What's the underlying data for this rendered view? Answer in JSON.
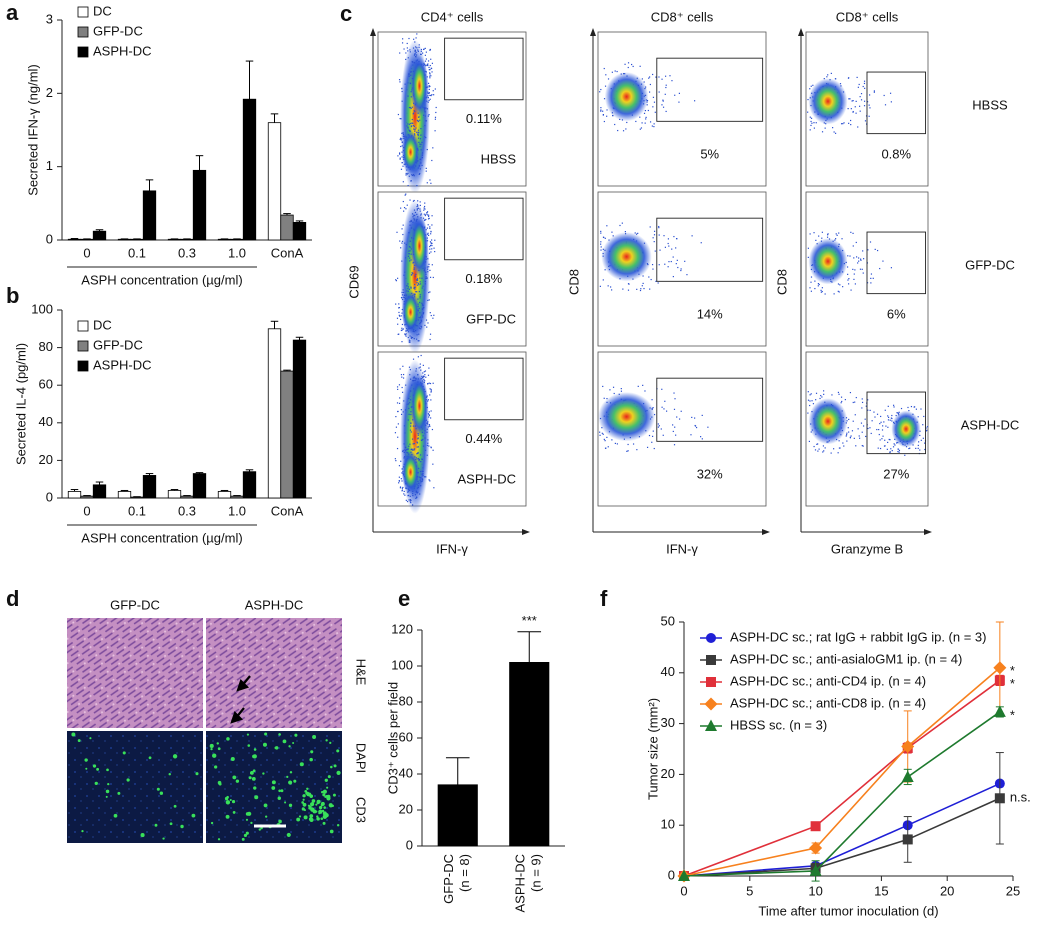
{
  "chart_data": [
    {
      "type": "bar",
      "panel": "a",
      "y_label": "Secreted IFN-γ (ng/ml)",
      "x_label": "ASPH concentration (µg/ml)",
      "categories": [
        "0",
        "0.1",
        "0.3",
        "1.0",
        "ConA"
      ],
      "ylim": [
        0,
        3
      ],
      "yticks": [
        0,
        1,
        2,
        3
      ],
      "series": [
        {
          "name": "DC",
          "color": "#ffffff",
          "values": [
            0.01,
            0.01,
            0.01,
            0.01,
            1.6
          ],
          "errors": [
            0.01,
            0.005,
            0.005,
            0.005,
            0.12
          ]
        },
        {
          "name": "GFP-DC",
          "color": "#808080",
          "values": [
            0.01,
            0.01,
            0.01,
            0.01,
            0.34
          ],
          "errors": [
            0.005,
            0.005,
            0.005,
            0.005,
            0.02
          ]
        },
        {
          "name": "ASPH-DC",
          "color": "#000000",
          "values": [
            0.12,
            0.67,
            0.95,
            1.92,
            0.24
          ],
          "errors": [
            0.02,
            0.15,
            0.2,
            0.52,
            0.02
          ]
        }
      ]
    },
    {
      "type": "bar",
      "panel": "b",
      "y_label": "Secreted IL-4 (pg/ml)",
      "x_label": "ASPH concentration (µg/ml)",
      "categories": [
        "0",
        "0.1",
        "0.3",
        "1.0",
        "ConA"
      ],
      "ylim": [
        0,
        100
      ],
      "yticks": [
        0,
        20,
        40,
        60,
        80,
        100
      ],
      "series": [
        {
          "name": "DC",
          "color": "#ffffff",
          "values": [
            3.5,
            3.5,
            4,
            3.5,
            90
          ],
          "errors": [
            1,
            0.5,
            0.5,
            0.5,
            4
          ]
        },
        {
          "name": "GFP-DC",
          "color": "#808080",
          "values": [
            1,
            0.5,
            1,
            1,
            67.5
          ],
          "errors": [
            0.3,
            0.2,
            0.3,
            0.3,
            0.5
          ]
        },
        {
          "name": "ASPH-DC",
          "color": "#000000",
          "values": [
            7,
            12,
            13,
            14,
            84
          ],
          "errors": [
            1.5,
            1,
            0.5,
            1,
            1.5
          ]
        }
      ]
    },
    {
      "type": "bar",
      "panel": "e",
      "y_label": "CD3⁺ cells per field",
      "categories": [
        "GFP-DC",
        "ASPH-DC"
      ],
      "group_sizes": [
        "(n = 8)",
        "(n = 9)"
      ],
      "values": [
        34,
        102
      ],
      "errors": [
        15,
        17
      ],
      "color": "#000000",
      "significance": "***",
      "ylim": [
        0,
        120
      ],
      "yticks": [
        0,
        20,
        40,
        60,
        80,
        100,
        120
      ]
    },
    {
      "type": "line",
      "panel": "f",
      "x_label": "Time after tumor inoculation (d)",
      "y_label": "Tumor size (mm²)",
      "x": [
        0,
        10,
        17,
        24
      ],
      "xlim": [
        0,
        25
      ],
      "xticks": [
        0,
        5,
        10,
        15,
        20,
        25
      ],
      "ylim": [
        0,
        50
      ],
      "yticks": [
        0,
        10,
        20,
        30,
        40,
        50
      ],
      "series": [
        {
          "name": "ASPH-DC sc.; rat IgG + rabbit IgG ip. (n = 3)",
          "color": "#1f1fd6",
          "marker": "circle",
          "values": [
            0,
            2,
            10,
            18.2
          ],
          "errors": [
            0,
            0.5,
            0.5,
            0.5
          ]
        },
        {
          "name": "ASPH-DC sc.; anti-asialoGM1 ip. (n = 4)",
          "color": "#3a3a3a",
          "marker": "square",
          "values": [
            0,
            1.5,
            7.2,
            15.3
          ],
          "errors": [
            0,
            1,
            4.5,
            9
          ],
          "annotation": "n.s."
        },
        {
          "name": "ASPH-DC sc.; anti-CD4 ip. (n = 4)",
          "color": "#e0303a",
          "marker": "square",
          "values": [
            0,
            9.8,
            25.2,
            38.5
          ],
          "errors": [
            0,
            0.5,
            1,
            1
          ],
          "annotation": "*"
        },
        {
          "name": "ASPH-DC sc.; anti-CD8 ip. (n = 4)",
          "color": "#f7811e",
          "marker": "diamond",
          "values": [
            0,
            5.5,
            25.5,
            41
          ],
          "errors": [
            0,
            1,
            7,
            9
          ],
          "annotation": "*"
        },
        {
          "name": "HBSS sc. (n = 3)",
          "color": "#1e7a2e",
          "marker": "triangle",
          "values": [
            0,
            1,
            19.5,
            32.3
          ],
          "errors": [
            0,
            2,
            1.5,
            1
          ],
          "annotation": "*"
        }
      ]
    }
  ],
  "flow": {
    "panel": "c",
    "rows": [
      "HBSS",
      "GFP-DC",
      "ASPH-DC"
    ],
    "columns": [
      {
        "header": "CD4⁺ cells",
        "y_label": "CD69",
        "x_label": "IFN-γ",
        "gates": [
          "0.11%",
          "0.18%",
          "0.44%"
        ]
      },
      {
        "header": "CD8⁺ cells",
        "y_label": "CD8",
        "x_label": "IFN-γ",
        "gates": [
          "5%",
          "14%",
          "32%"
        ]
      },
      {
        "header": "CD8⁺ cells",
        "y_label": "CD8",
        "x_label": "Granzyme B",
        "gates": [
          "0.8%",
          "6%",
          "27%"
        ]
      }
    ]
  },
  "micrographs": {
    "panel": "d",
    "columns": [
      "GFP-DC",
      "ASPH-DC"
    ],
    "stains": {
      "he": "H&E",
      "dapi": "DAPI",
      "cd3": "CD3"
    }
  }
}
